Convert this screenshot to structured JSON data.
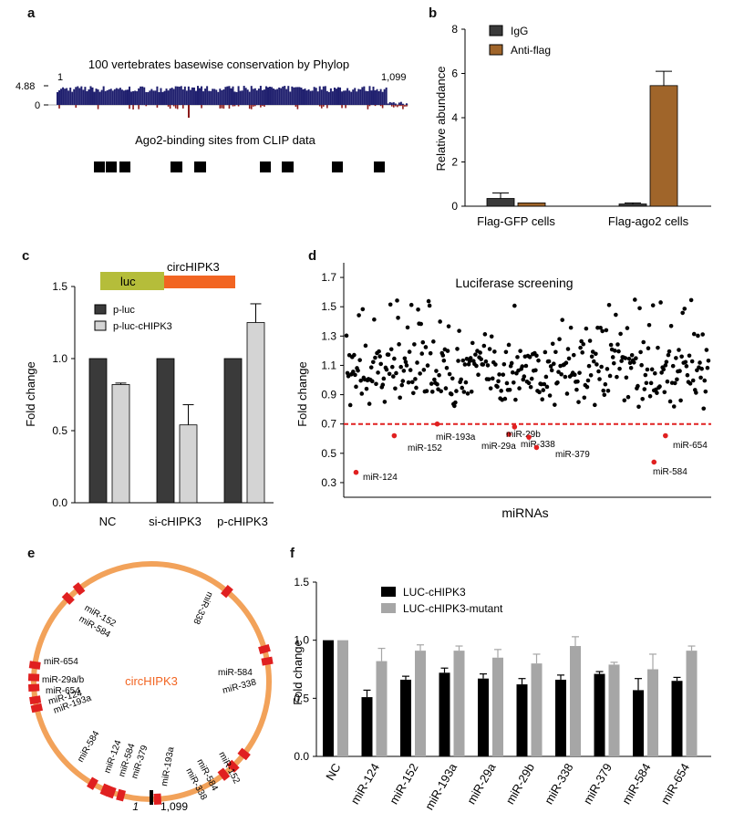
{
  "panels": {
    "a": {
      "label": "a",
      "title": "100 vertebrates basewise conservation by Phylop",
      "ymax_label": "4.88",
      "yzero_label": "0",
      "start_label": "1",
      "end_label": "1,099",
      "track2_title": "Ago2-binding sites from CLIP data"
    },
    "b": {
      "label": "b",
      "legend": [
        "IgG",
        "Anti-flag"
      ],
      "ylabel": "Relative abundance"
    },
    "c": {
      "label": "c",
      "construct_luc": "luc",
      "construct_circ": "circHIPK3",
      "legend": [
        "p-luc",
        "p-luc-cHIPK3"
      ],
      "ylabel": "Fold change"
    },
    "d": {
      "label": "d",
      "title": "Luciferase screening",
      "ylabel": "Fold change",
      "xlabel": "miRNAs",
      "highlights": [
        "miR-124",
        "miR-152",
        "miR-193a",
        "miR-29a",
        "miR-29b",
        "miR-338",
        "miR-379",
        "miR-584",
        "miR-654"
      ]
    },
    "e": {
      "label": "e",
      "center": "circHIPK3",
      "start": "1",
      "end": "1,099",
      "sites": [
        "miR-152",
        "miR-584",
        "miR-338",
        "miR-654",
        "miR-29a/b",
        "miR-654",
        "miR-124",
        "miR-193a",
        "miR-584",
        "miR-338",
        "miR-584",
        "miR-124",
        "miR-584",
        "miR-379",
        "miR-193a",
        "miR-152",
        "miR-584",
        "miR-338"
      ]
    },
    "f": {
      "label": "f",
      "legend": [
        "LUC-cHIPK3",
        "LUC-cHIPK3-mutant"
      ],
      "ylabel": "Fold change"
    }
  },
  "chart_data": [
    {
      "panel": "a",
      "type": "area",
      "title": "100 vertebrates basewise conservation by Phylop",
      "xlim": [
        1,
        1099
      ],
      "ylim": [
        0,
        4.88
      ],
      "clip_sites_count": 9
    },
    {
      "panel": "b",
      "type": "bar",
      "categories": [
        "Flag-GFP cells",
        "Flag-ago2 cells"
      ],
      "series": [
        {
          "name": "IgG",
          "values": [
            0.35,
            0.1
          ],
          "errors": [
            0.25,
            0.05
          ]
        },
        {
          "name": "Anti-flag",
          "values": [
            0.15,
            5.45
          ],
          "errors": [
            0,
            0.65
          ]
        }
      ],
      "ylabel": "Relative abundance",
      "ylim": [
        0,
        8
      ],
      "yticks": [
        0,
        2,
        4,
        6,
        8
      ]
    },
    {
      "panel": "c",
      "type": "bar",
      "categories": [
        "NC",
        "si-cHIPK3",
        "p-cHIPK3"
      ],
      "series": [
        {
          "name": "p-luc",
          "values": [
            1.0,
            1.0,
            1.0
          ],
          "errors": [
            0,
            0,
            0
          ]
        },
        {
          "name": "p-luc-cHIPK3",
          "values": [
            0.82,
            0.54,
            1.25
          ],
          "errors": [
            0.01,
            0.14,
            0.13
          ]
        }
      ],
      "ylabel": "Fold change",
      "ylim": [
        0,
        1.5
      ],
      "yticks": [
        0.0,
        0.5,
        1.0,
        1.5
      ]
    },
    {
      "panel": "d",
      "type": "scatter",
      "title": "Luciferase screening",
      "xlabel": "miRNAs",
      "ylabel": "Fold change",
      "ylim": [
        0.2,
        1.8
      ],
      "yticks": [
        0.3,
        0.5,
        0.7,
        0.9,
        1.1,
        1.3,
        1.5,
        1.7
      ],
      "threshold": 0.7,
      "highlighted_points": [
        {
          "label": "miR-124",
          "x": 10,
          "y": 0.37
        },
        {
          "label": "miR-152",
          "x": 50,
          "y": 0.62
        },
        {
          "label": "miR-193a",
          "x": 95,
          "y": 0.7
        },
        {
          "label": "miR-29a",
          "x": 170,
          "y": 0.63
        },
        {
          "label": "miR-29b",
          "x": 176,
          "y": 0.68
        },
        {
          "label": "miR-338",
          "x": 191,
          "y": 0.61
        },
        {
          "label": "miR-379",
          "x": 199,
          "y": 0.54
        },
        {
          "label": "miR-584",
          "x": 322,
          "y": 0.44
        },
        {
          "label": "miR-654",
          "x": 334,
          "y": 0.62
        }
      ],
      "n_points": 380
    },
    {
      "panel": "f",
      "type": "bar",
      "categories": [
        "NC",
        "miR-124",
        "miR-152",
        "miR-193a",
        "miR-29a",
        "miR-29b",
        "miR-338",
        "miR-379",
        "miR-584",
        "miR-654"
      ],
      "series": [
        {
          "name": "LUC-cHIPK3",
          "values": [
            1.0,
            0.51,
            0.66,
            0.72,
            0.67,
            0.62,
            0.66,
            0.71,
            0.57,
            0.65
          ],
          "errors": [
            0,
            0.06,
            0.03,
            0.04,
            0.04,
            0.05,
            0.04,
            0.02,
            0.1,
            0.03
          ]
        },
        {
          "name": "LUC-cHIPK3-mutant",
          "values": [
            1.0,
            0.82,
            0.91,
            0.91,
            0.85,
            0.8,
            0.95,
            0.79,
            0.75,
            0.91
          ],
          "errors": [
            0,
            0.11,
            0.05,
            0.04,
            0.07,
            0.08,
            0.08,
            0.02,
            0.13,
            0.04
          ]
        }
      ],
      "ylabel": "Fold change",
      "ylim": [
        0,
        1.5
      ],
      "yticks": [
        0.0,
        0.5,
        1.0,
        1.5
      ]
    }
  ],
  "colors": {
    "igg": "#3a3a3a",
    "antiflag": "#a0652a",
    "pluc": "#3a3a3a",
    "plucchipk3": "#d4d4d4",
    "luc_box": "#b5bd3a",
    "circ_box": "#f26522",
    "threshold": "#e02020",
    "highlight": "#e02020",
    "circle": "#f2a25a",
    "site": "#e02020",
    "conservation": "#1f1f6e",
    "conservation_neg": "#8b1a1a",
    "f_wt": "#000000",
    "f_mut": "#a6a6a6",
    "circ_text": "#f26522"
  }
}
